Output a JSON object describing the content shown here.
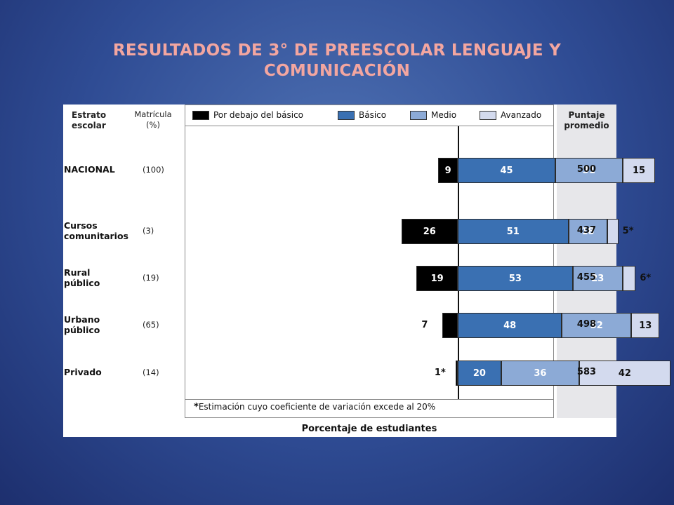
{
  "title": {
    "line1": "RESULTADOS DE 3° DE PREESCOLAR LENGUAJE Y",
    "line2": "COMUNICACIÓN"
  },
  "headers": {
    "strata_line1": "Estrato",
    "strata_line2": "escolar",
    "enrollment_line1": "Matrícula",
    "enrollment_line2": "(%)",
    "score_line1": "Puntaje",
    "score_line2": "promedio"
  },
  "footnote": {
    "star": "*",
    "text": "Estimación cuyo coeficiente de variación excede al 20%"
  },
  "colors": {
    "below_basic": "#000000",
    "basic": "#3a70b2",
    "medium": "#8caad6",
    "advanced": "#d3daee"
  },
  "chart_data": {
    "type": "bar",
    "orientation": "horizontal-stacked-diverging",
    "xlabel": "Porcentaje de estudiantes",
    "legend": [
      "Por debajo del básico",
      "Básico",
      "Medio",
      "Avanzado"
    ],
    "legend_position": "top",
    "categories": [
      {
        "name_line1": "NACIONAL",
        "name_line2": "",
        "enrollment": "(100)",
        "score": "500"
      },
      {
        "name_line1": "Cursos",
        "name_line2": "comunitarios",
        "enrollment": "(3)",
        "score": "437"
      },
      {
        "name_line1": "Rural",
        "name_line2": "público",
        "enrollment": "(19)",
        "score": "455"
      },
      {
        "name_line1": "Urbano",
        "name_line2": "público",
        "enrollment": "(65)",
        "score": "498"
      },
      {
        "name_line1": "Privado",
        "name_line2": "",
        "enrollment": "(14)",
        "score": "583"
      }
    ],
    "series": [
      {
        "name": "Por debajo del básico",
        "values": [
          9,
          26,
          19,
          7,
          1
        ],
        "labels": [
          "9",
          "26",
          "19",
          "7",
          "1*"
        ]
      },
      {
        "name": "Básico",
        "values": [
          45,
          51,
          53,
          48,
          20
        ],
        "labels": [
          "45",
          "51",
          "53",
          "48",
          "20"
        ]
      },
      {
        "name": "Medio",
        "values": [
          31,
          18,
          23,
          32,
          36
        ],
        "labels": [
          "31",
          "18",
          "23",
          "32",
          "36"
        ]
      },
      {
        "name": "Avanzado",
        "values": [
          15,
          5,
          6,
          13,
          42
        ],
        "labels": [
          "15",
          "5*",
          "6*",
          "13",
          "42"
        ]
      }
    ]
  }
}
